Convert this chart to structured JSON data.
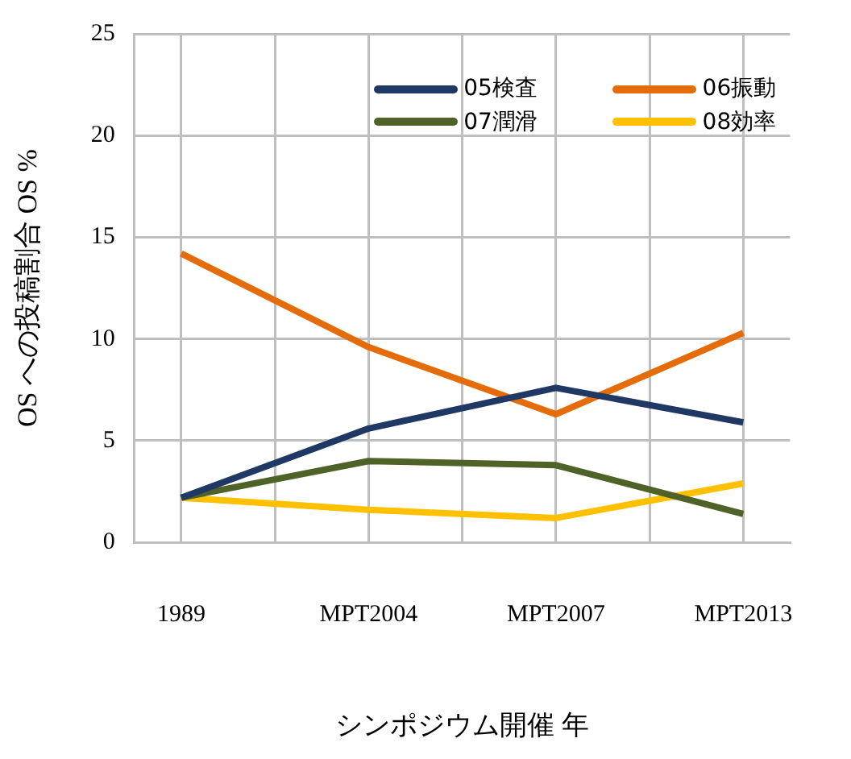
{
  "chart_data": {
    "type": "line",
    "xlabel": "シンポジウム開催 年",
    "ylabel": "OS への投稿割合 OS %",
    "categories": [
      "1989",
      null,
      "MPT2004",
      null,
      "MPT2007",
      null,
      "MPT2013"
    ],
    "series": [
      {
        "name": "05検査",
        "color": "#1f3864",
        "values": [
          2.2,
          null,
          5.6,
          null,
          7.6,
          null,
          5.9
        ]
      },
      {
        "name": "06振動",
        "color": "#e46c0a",
        "values": [
          14.2,
          null,
          9.6,
          null,
          6.3,
          null,
          10.3
        ]
      },
      {
        "name": "07潤滑",
        "color": "#4f6228",
        "values": [
          2.2,
          null,
          4.0,
          null,
          3.8,
          null,
          1.4
        ]
      },
      {
        "name": "08効率",
        "color": "#ffc000",
        "values": [
          2.2,
          null,
          1.6,
          null,
          1.2,
          null,
          2.9
        ]
      }
    ],
    "ylim": [
      0,
      25
    ],
    "yticks": [
      0,
      5,
      10,
      15,
      20,
      25
    ],
    "grid": true,
    "legend": "top right",
    "marker": "none",
    "line_style": "solid"
  }
}
